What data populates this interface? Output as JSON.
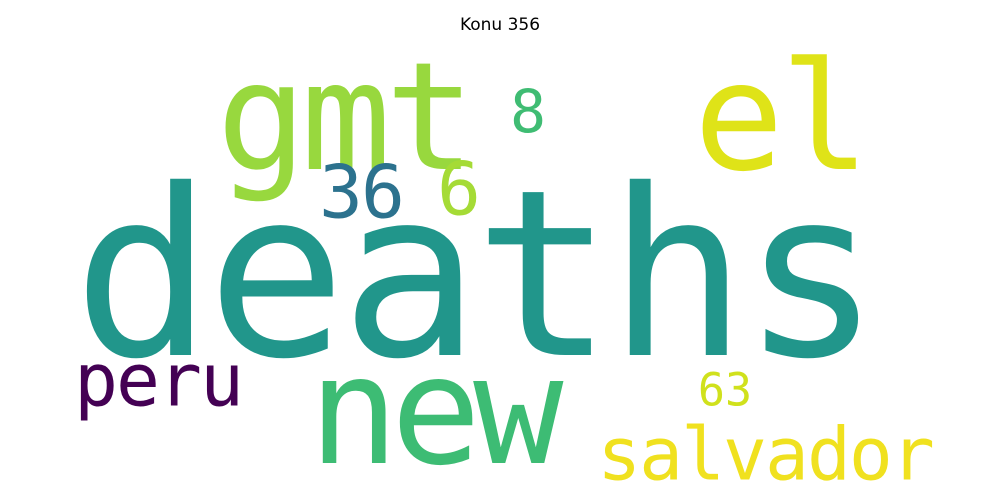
{
  "title": "Konu 356",
  "words": {
    "deaths": {
      "text": "deaths",
      "color": "#21968b"
    },
    "new": {
      "text": "new",
      "color": "#3dbc74"
    },
    "el": {
      "text": "el",
      "color": "#dfe318"
    },
    "gmt": {
      "text": "gmt",
      "color": "#98d83e"
    },
    "salvador": {
      "text": "salvador",
      "color": "#f0e11f"
    },
    "peru": {
      "text": "peru",
      "color": "#440154"
    },
    "n36": {
      "text": "36",
      "color": "#2c728e"
    },
    "n6": {
      "text": "6",
      "color": "#a5db36"
    },
    "n8": {
      "text": "8",
      "color": "#3fbc73"
    },
    "n63": {
      "text": "63",
      "color": "#d0e11c"
    }
  }
}
